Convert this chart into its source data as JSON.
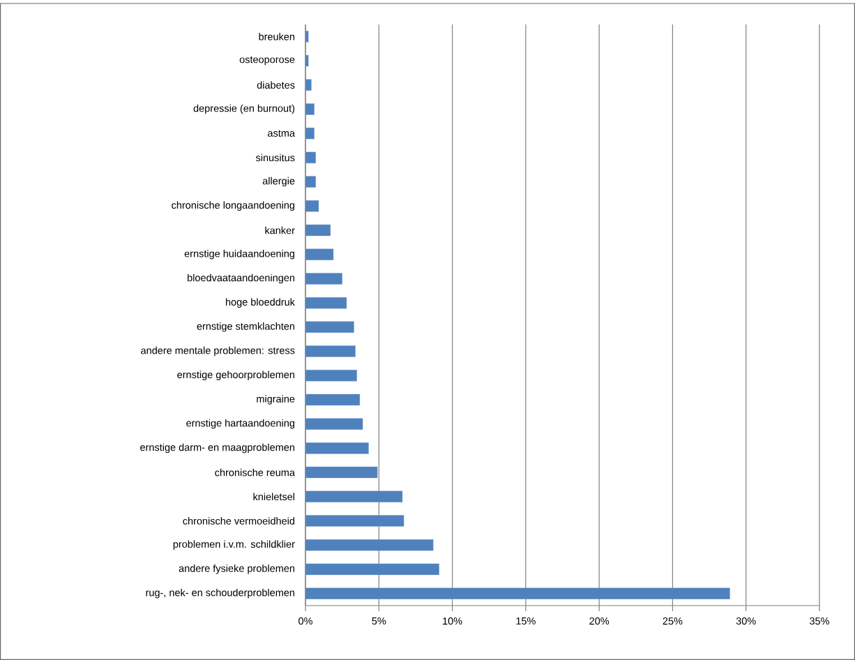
{
  "chart_data": {
    "type": "bar",
    "orientation": "horizontal",
    "categories": [
      "breuken",
      "osteoporose",
      "diabetes",
      "depressie (en burnout)",
      "astma",
      "sinusitus",
      "allergie",
      "chronische longaandoening",
      "kanker",
      "ernstige huidaandoening",
      "bloedvaataandoeningen",
      "hoge bloeddruk",
      "ernstige stemklachten",
      "andere mentale problemen: stress",
      "ernstige gehoorproblemen",
      "migraine",
      "ernstige hartaandoening",
      "ernstige darm- en maagproblemen",
      "chronische reuma",
      "knieletsel",
      "chronische vermoeidheid",
      "problemen i.v.m. schildklier",
      "andere fysieke problemen",
      "rug-, nek- en schouderproblemen"
    ],
    "values": [
      0.2,
      0.2,
      0.4,
      0.6,
      0.6,
      0.7,
      0.7,
      0.9,
      1.7,
      1.9,
      2.5,
      2.8,
      3.3,
      3.4,
      3.5,
      3.7,
      3.9,
      4.3,
      4.9,
      6.6,
      6.7,
      8.7,
      9.1,
      28.9
    ],
    "color": "#4f81bd",
    "xlim": [
      0,
      35
    ],
    "xticks": [
      {
        "value": 0,
        "label": "0%"
      },
      {
        "value": 5,
        "label": "5%"
      },
      {
        "value": 10,
        "label": "10%"
      },
      {
        "value": 15,
        "label": "15%"
      },
      {
        "value": 20,
        "label": "20%"
      },
      {
        "value": 25,
        "label": "25%"
      },
      {
        "value": 30,
        "label": "30%"
      },
      {
        "value": 35,
        "label": "35%"
      }
    ],
    "grid": "x"
  }
}
